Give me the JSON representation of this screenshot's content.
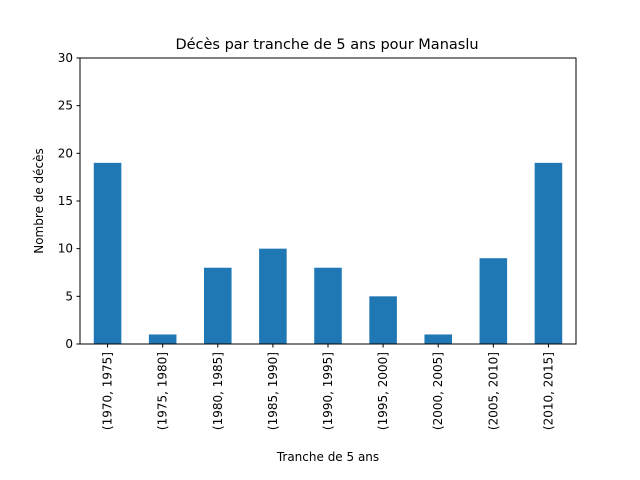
{
  "chart_data": {
    "type": "bar",
    "title": "Décès par tranche de 5 ans pour Manaslu",
    "xlabel": "Tranche de 5 ans",
    "ylabel": "Nombre de décès",
    "categories": [
      "(1970, 1975]",
      "(1975, 1980]",
      "(1980, 1985]",
      "(1985, 1990]",
      "(1990, 1995]",
      "(1995, 2000]",
      "(2000, 2005]",
      "(2005, 2010]",
      "(2010, 2015]"
    ],
    "values": [
      19,
      1,
      8,
      10,
      8,
      5,
      1,
      9,
      19
    ],
    "ylim": [
      0,
      30
    ],
    "yticks": [
      0,
      5,
      10,
      15,
      20,
      25,
      30
    ],
    "bar_color": "#1f77b4",
    "grid": false,
    "legend": "none"
  }
}
